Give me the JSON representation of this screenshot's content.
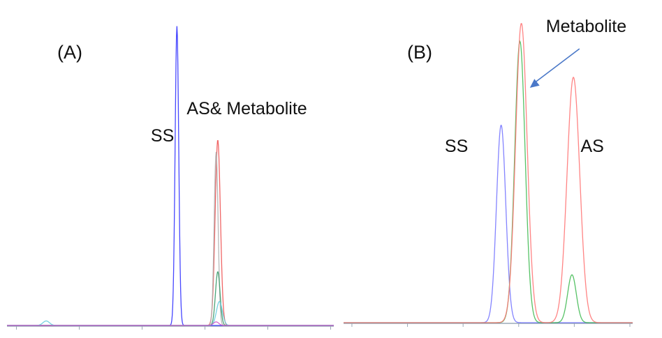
{
  "chart_data": [
    {
      "type": "line",
      "panel_label": "(A)",
      "annotations": [
        {
          "text": "SS",
          "x": 4.4
        },
        {
          "text": "AS& Metabolite",
          "x": 5.5
        }
      ],
      "xlim": [
        0,
        10
      ],
      "ylim": [
        0,
        1.05
      ],
      "series": [
        {
          "color": "#3333ff",
          "peaks": [
            {
              "center": 5.2,
              "height": 1.0,
              "width": 0.055
            }
          ]
        },
        {
          "color": "#ee5555",
          "peaks": [
            {
              "center": 6.45,
              "height": 0.62,
              "width": 0.08
            }
          ]
        },
        {
          "color": "#b0b0b0",
          "peaks": [
            {
              "center": 6.4,
              "height": 0.58,
              "width": 0.06
            }
          ]
        },
        {
          "color": "#3a9a6a",
          "peaks": [
            {
              "center": 6.45,
              "height": 0.18,
              "width": 0.07
            }
          ]
        },
        {
          "color": "#66ccdd",
          "peaks": [
            {
              "center": 6.5,
              "height": 0.08,
              "width": 0.09
            },
            {
              "center": 1.2,
              "height": 0.015,
              "width": 0.1
            }
          ]
        },
        {
          "color": "#cc55cc",
          "peaks": [
            {
              "center": 6.4,
              "height": 0.012,
              "width": 0.08
            }
          ]
        }
      ]
    },
    {
      "type": "line",
      "panel_label": "(B)",
      "annotations": [
        {
          "text": "SS",
          "x": 3.5
        },
        {
          "text": "Metabolite",
          "x": 7.0,
          "arrow_to_x": 6.3
        },
        {
          "text": "AS",
          "x": 8.2
        }
      ],
      "xlim": [
        0,
        10
      ],
      "ylim": [
        0,
        1.05
      ],
      "series": [
        {
          "color": "#7777ff",
          "peaks": [
            {
              "center": 5.45,
              "height": 0.66,
              "width": 0.16
            }
          ]
        },
        {
          "color": "#44bb55",
          "peaks": [
            {
              "center": 6.1,
              "height": 0.94,
              "width": 0.18
            },
            {
              "center": 7.9,
              "height": 0.16,
              "width": 0.15
            }
          ]
        },
        {
          "color": "#ff7777",
          "peaks": [
            {
              "center": 6.15,
              "height": 1.0,
              "width": 0.2
            },
            {
              "center": 7.95,
              "height": 0.82,
              "width": 0.22
            }
          ]
        }
      ]
    }
  ]
}
